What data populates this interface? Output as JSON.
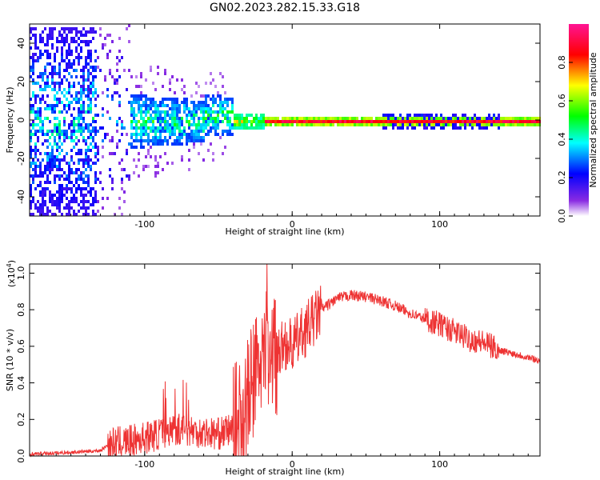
{
  "title": "GN02.2023.282.15.33.G18",
  "chart_data": [
    {
      "type": "heatmap",
      "xlabel": "Height of straight line (km)",
      "ylabel": "Frequency (Hz)",
      "xlim": [
        -178,
        168
      ],
      "ylim": [
        -50,
        50
      ],
      "xticks": [
        -100,
        0,
        100
      ],
      "yticks": [
        -40,
        -20,
        0,
        20,
        40
      ],
      "colorbar": {
        "label": "Normalized spectral amplitude",
        "range": [
          0.0,
          1.0
        ],
        "ticks": [
          "0.0",
          "0.2",
          "0.4",
          "0.6",
          "0.8"
        ],
        "colors": [
          "#ffffff",
          "#8a2be2",
          "#0000ff",
          "#00ffff",
          "#00ff00",
          "#ffff00",
          "#ff0000",
          "#ff1493"
        ]
      },
      "description_points": [
        {
          "x": -178,
          "spread": 50
        },
        {
          "x": -130,
          "spread": 20
        },
        {
          "x": -100,
          "spread": 10
        },
        {
          "x": -50,
          "spread": 8
        },
        {
          "x": -30,
          "spread": 3
        },
        {
          "x": 0,
          "spread": 2
        },
        {
          "x": 80,
          "spread": 2
        },
        {
          "x": 140,
          "spread": 2
        },
        {
          "x": 168,
          "spread": 1.5
        }
      ]
    },
    {
      "type": "line",
      "xlabel": "Height of straight line (km)",
      "ylabel": "SNR (10 * v/v)",
      "yscale_label": "(x10",
      "yscale_exp": "4",
      "yscale_close": ")",
      "xlim": [
        -178,
        168
      ],
      "ylim": [
        0.0,
        1.05
      ],
      "xticks": [
        -100,
        0,
        100
      ],
      "yticks": [
        "0.0",
        "0.2",
        "0.4",
        "0.6",
        "0.8",
        "1.0"
      ],
      "color": "#ee3333",
      "series": [
        {
          "x": [
            -178,
            -150,
            -130,
            -125,
            -120,
            -110,
            -100,
            -90,
            -80,
            -70,
            -60,
            -50,
            -40,
            -35,
            -30,
            -25,
            -20,
            -15,
            -10,
            -5,
            0,
            10,
            20,
            30,
            40,
            50,
            60,
            70,
            80,
            90,
            100,
            110,
            120,
            130,
            135,
            140,
            150,
            160,
            168
          ],
          "y": [
            0.01,
            0.02,
            0.03,
            0.06,
            0.07,
            0.08,
            0.1,
            0.12,
            0.15,
            0.14,
            0.13,
            0.12,
            0.15,
            0.2,
            0.3,
            0.45,
            0.55,
            0.6,
            0.55,
            0.62,
            0.6,
            0.7,
            0.8,
            0.86,
            0.88,
            0.87,
            0.85,
            0.82,
            0.78,
            0.75,
            0.72,
            0.68,
            0.64,
            0.62,
            0.6,
            0.58,
            0.56,
            0.54,
            0.52
          ]
        }
      ]
    }
  ]
}
